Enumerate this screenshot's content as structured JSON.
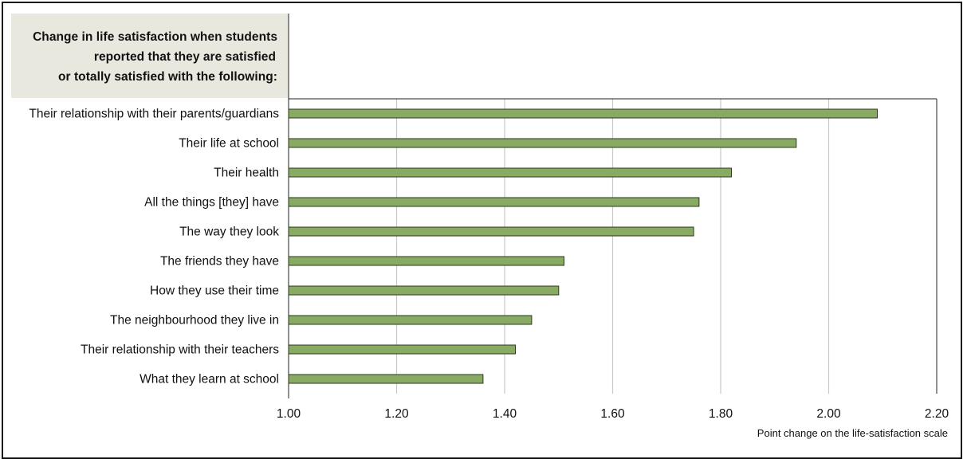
{
  "title_lines": [
    "Change in life satisfaction when students",
    "reported that they are satisfied",
    "or totally satisfied with the following:"
  ],
  "colors": {
    "bar_fill": "#89aa63",
    "bar_stroke": "#2b3a1c",
    "grid": "#c8c8c8",
    "axis": "#222222",
    "header_bg": "#e9e8df"
  },
  "chart_data": {
    "type": "bar",
    "orientation": "horizontal",
    "categories": [
      "Their relationship with their parents/guardians",
      "Their life at school",
      "Their health",
      "All the things [they] have",
      "The way they look",
      "The friends they have",
      "How they use their time",
      "The neighbourhood they live in",
      "Their relationship with their teachers",
      "What they learn at school"
    ],
    "values": [
      2.09,
      1.94,
      1.82,
      1.76,
      1.75,
      1.51,
      1.5,
      1.45,
      1.42,
      1.36
    ],
    "xlim": [
      1.0,
      2.2
    ],
    "xticks": [
      "1.00",
      "1.20",
      "1.40",
      "1.60",
      "1.80",
      "2.00",
      "2.20"
    ],
    "xlabel": "Point change on the life-satisfaction scale",
    "grid": "vertical"
  }
}
